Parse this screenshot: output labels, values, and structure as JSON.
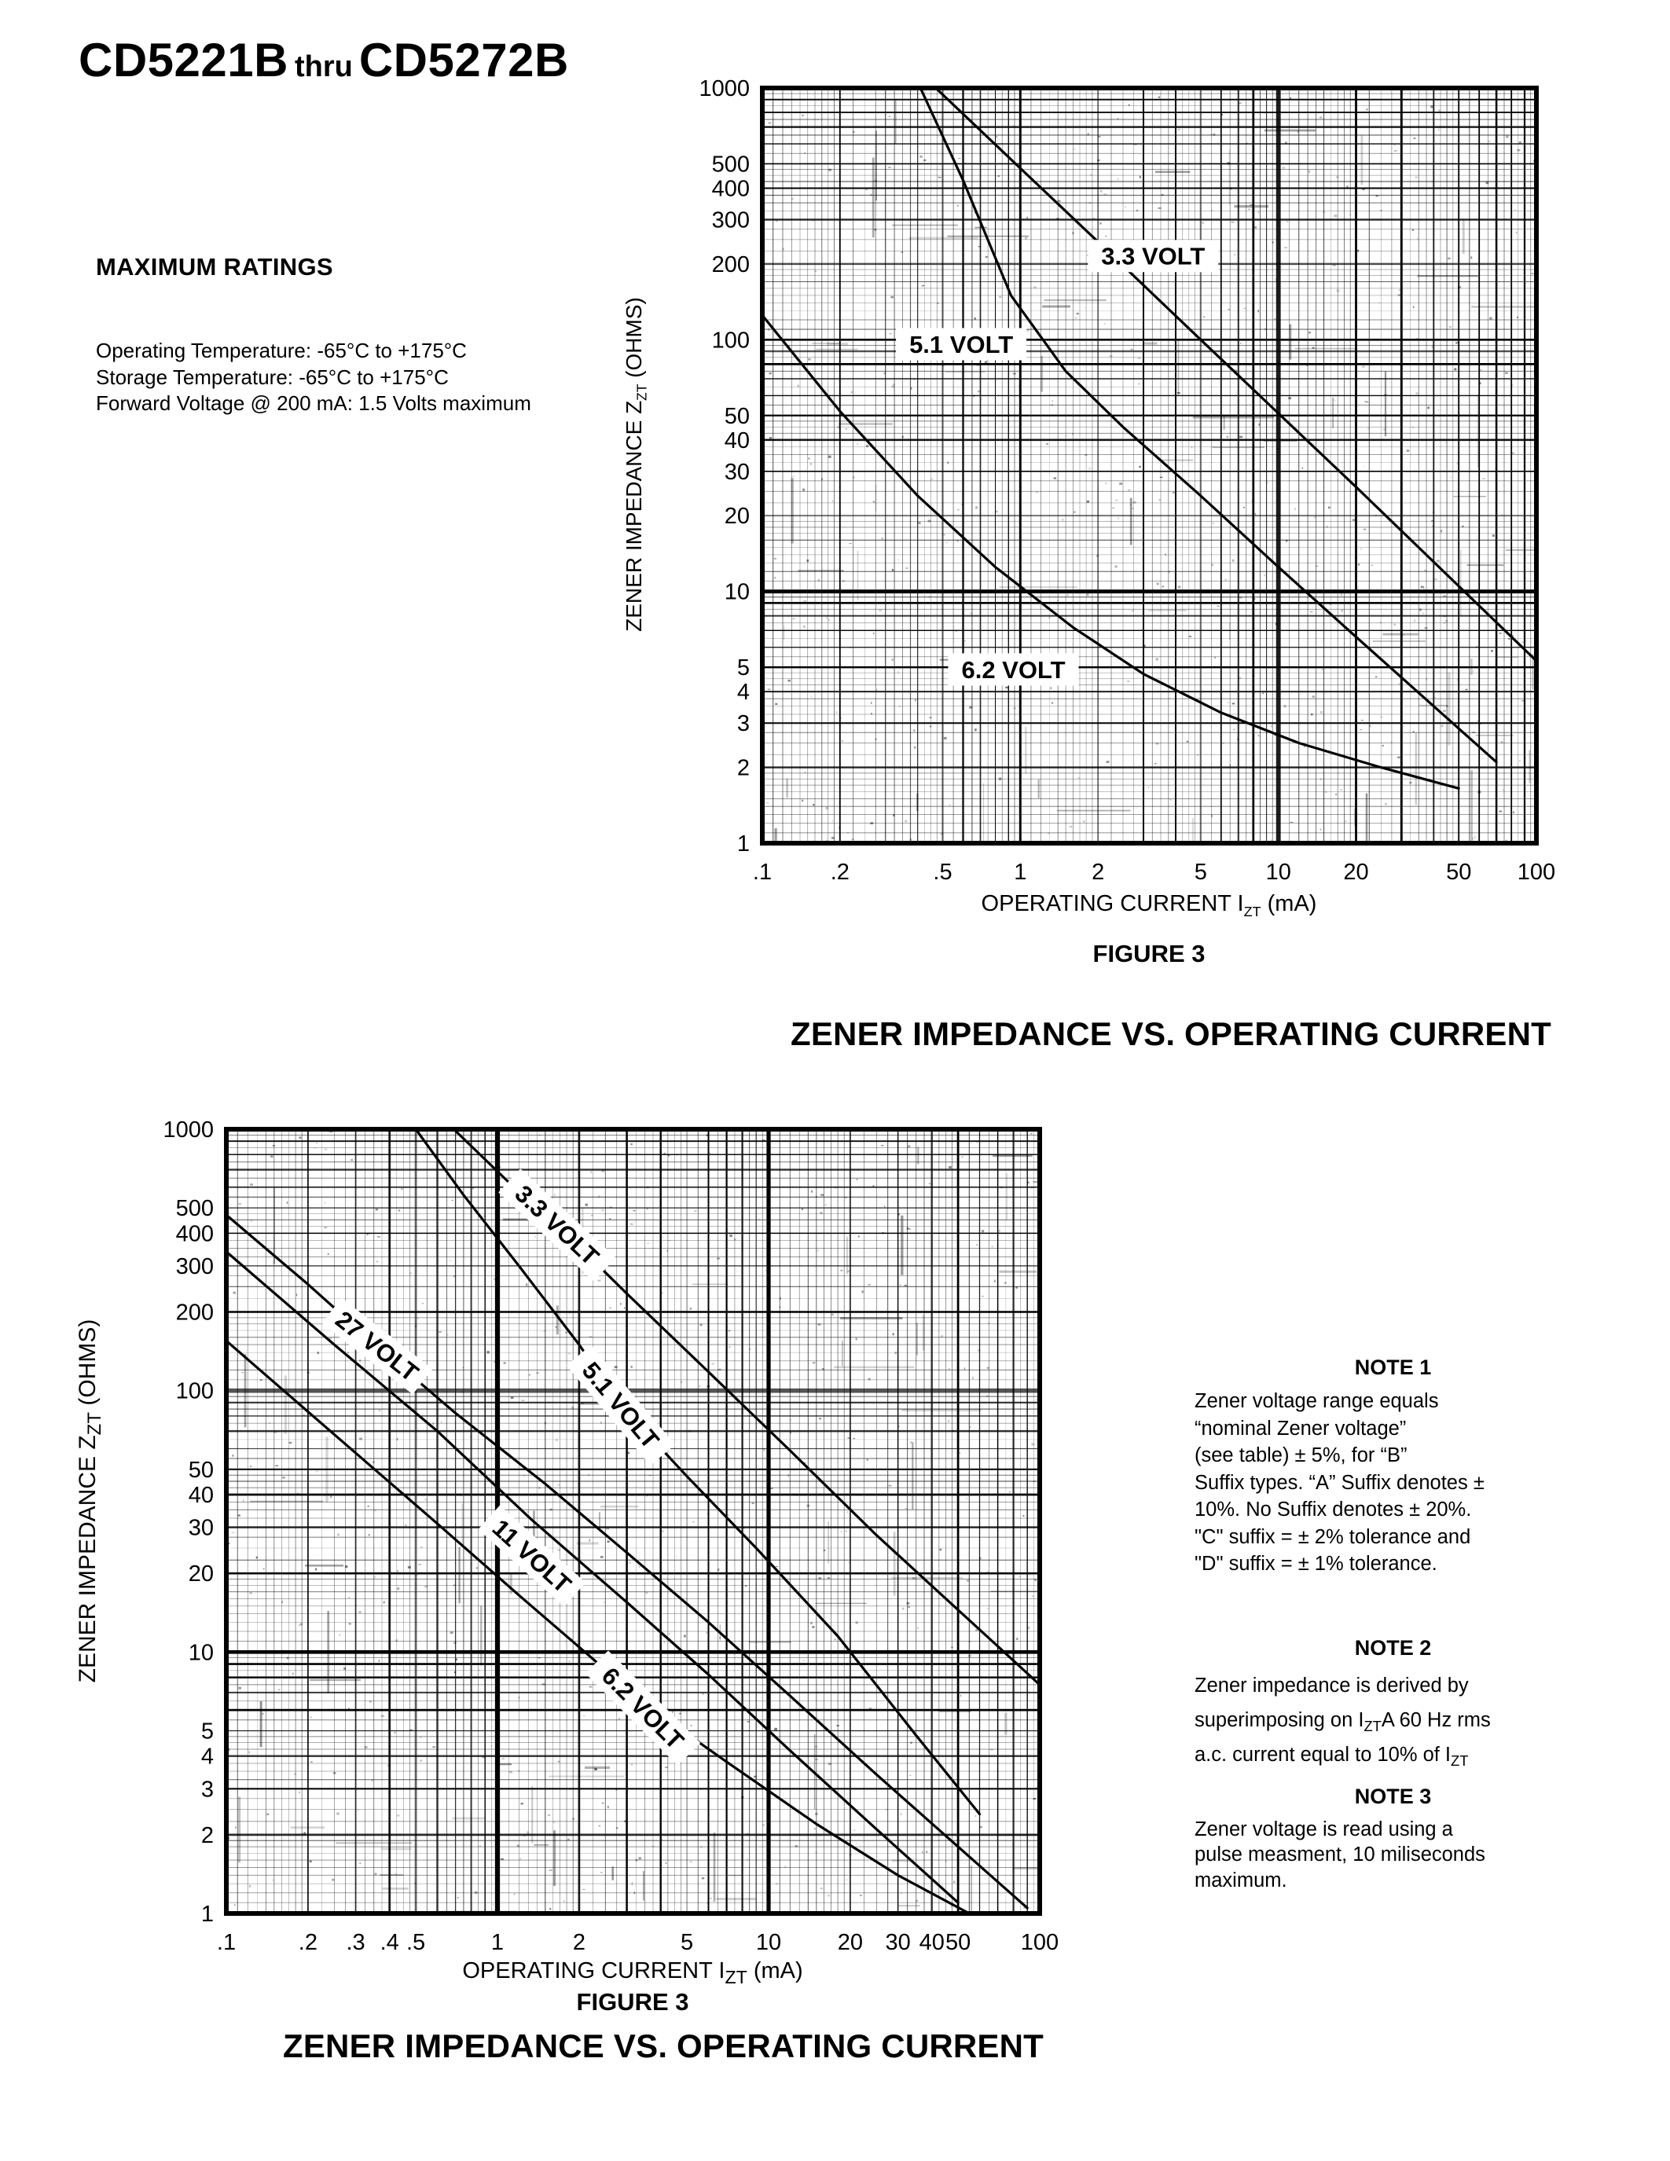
{
  "header": {
    "part1": "CD5221B",
    "thru": "thru",
    "part2": "CD5272B"
  },
  "max_ratings": {
    "heading": "MAXIMUM RATINGS",
    "lines": [
      "Operating Temperature: -65°C to +175°C",
      "Storage Temperature: -65°C to +175°C",
      "Forward Voltage @ 200 mA: 1.5 Volts maximum"
    ]
  },
  "figures": {
    "top_caption": "FIGURE 3",
    "mid_heading": "ZENER IMPEDANCE VS. OPERATING CURRENT",
    "bottom_caption": "FIGURE 3",
    "bottom_heading": "ZENER IMPEDANCE VS. OPERATING CURRENT"
  },
  "notes": [
    {
      "heading": "NOTE 1",
      "lines": [
        "Zener voltage range equals",
        "“nominal Zener voltage”",
        "(see table) ± 5%, for “B”",
        "Suffix types. “A” Suffix denotes ±",
        "10%. No Suffix denotes ± 20%.",
        "\"C\" suffix = ± 2% tolerance and",
        "\"D\" suffix = ± 1% tolerance."
      ]
    },
    {
      "heading": "NOTE 2",
      "lines": [
        "Zener impedance is derived by",
        "superimposing on I{ZT}A 60 Hz rms",
        "a.c. current equal to 10% of I{ZT}"
      ]
    },
    {
      "heading": "NOTE 3",
      "lines": [
        "Zener voltage is read using a",
        "pulse measment, 10 miliseconds",
        "maximum."
      ]
    }
  ],
  "chart_data": [
    {
      "id": "figure3-top",
      "type": "line",
      "xscale": "log",
      "yscale": "log",
      "xlim": [
        0.1,
        100
      ],
      "ylim": [
        1,
        1000
      ],
      "grid": "dense-log-scan",
      "legend_position": "inline-labels",
      "xlabel_rich": "OPERATING CURRENT I{ZT} (mA)",
      "ylabel_rich": "ZENER IMPEDANCE Z{ZT} (OHMS)",
      "x_ticks": [
        {
          "v": 0.1,
          "l": ".1"
        },
        {
          "v": 0.2,
          "l": ".2"
        },
        {
          "v": 0.5,
          "l": ".5"
        },
        {
          "v": 1,
          "l": "1"
        },
        {
          "v": 2,
          "l": "2"
        },
        {
          "v": 5,
          "l": "5"
        },
        {
          "v": 10,
          "l": "10"
        },
        {
          "v": 20,
          "l": "20"
        },
        {
          "v": 50,
          "l": "50"
        },
        {
          "v": 100,
          "l": "100"
        }
      ],
      "y_ticks": [
        {
          "v": 1000,
          "l": "1000"
        },
        {
          "v": 500,
          "l": "500"
        },
        {
          "v": 400,
          "l": "400"
        },
        {
          "v": 300,
          "l": "300"
        },
        {
          "v": 200,
          "l": "200"
        },
        {
          "v": 100,
          "l": "100"
        },
        {
          "v": 50,
          "l": "50"
        },
        {
          "v": 40,
          "l": "40"
        },
        {
          "v": 30,
          "l": "30"
        },
        {
          "v": 20,
          "l": "20"
        },
        {
          "v": 10,
          "l": "10"
        },
        {
          "v": 5,
          "l": "5"
        },
        {
          "v": 4,
          "l": "4"
        },
        {
          "v": 3,
          "l": "3"
        },
        {
          "v": 2,
          "l": "2"
        },
        {
          "v": 1,
          "l": "1"
        }
      ],
      "series": [
        {
          "name": "3.3 VOLT",
          "label_at": {
            "x": 3.27,
            "y": 215,
            "rot": 0
          },
          "points": [
            [
              0.47,
              1000
            ],
            [
              1,
              480
            ],
            [
              2,
              245
            ],
            [
              5,
              100
            ],
            [
              10,
              51
            ],
            [
              20,
              26
            ],
            [
              50,
              10.5
            ],
            [
              100,
              5.3
            ]
          ]
        },
        {
          "name": "5.1 VOLT",
          "label_at": {
            "x": 0.59,
            "y": 96,
            "rot": 0
          },
          "points": [
            [
              0.41,
              1000
            ],
            [
              0.6,
              430
            ],
            [
              0.92,
              150
            ],
            [
              1.5,
              75
            ],
            [
              2.5,
              45
            ],
            [
              5,
              24
            ],
            [
              10,
              12.5
            ],
            [
              20,
              6.6
            ],
            [
              40,
              3.5
            ],
            [
              70,
              2.1
            ]
          ]
        },
        {
          "name": "6.2 VOLT",
          "label_at": {
            "x": 0.94,
            "y": 4.9,
            "rot": 0
          },
          "points": [
            [
              0.1,
              125
            ],
            [
              0.2,
              52
            ],
            [
              0.4,
              24
            ],
            [
              0.8,
              12.5
            ],
            [
              1.6,
              7.2
            ],
            [
              3,
              4.7
            ],
            [
              6,
              3.3
            ],
            [
              12,
              2.5
            ],
            [
              25,
              2.0
            ],
            [
              50,
              1.65
            ]
          ]
        }
      ]
    },
    {
      "id": "figure3-bottom",
      "type": "line",
      "xscale": "log",
      "yscale": "log",
      "xlim": [
        0.1,
        100
      ],
      "ylim": [
        1,
        1000
      ],
      "grid": "dense-log-scan",
      "legend_position": "inline-labels",
      "xlabel_rich": "OPERATING CURRENT I{ZT} (mA)",
      "ylabel_rich": "ZENER IMPEDANCE Z{ZT} (OHMS)",
      "x_ticks": [
        {
          "v": 0.1,
          "l": ".1"
        },
        {
          "v": 0.2,
          "l": ".2"
        },
        {
          "v": 0.3,
          "l": ".3"
        },
        {
          "v": 0.4,
          "l": ".4"
        },
        {
          "v": 0.5,
          "l": ".5"
        },
        {
          "v": 1,
          "l": "1"
        },
        {
          "v": 2,
          "l": "2"
        },
        {
          "v": 5,
          "l": "5"
        },
        {
          "v": 10,
          "l": "10"
        },
        {
          "v": 20,
          "l": "20"
        },
        {
          "v": 30,
          "l": "30"
        },
        {
          "v": 40,
          "l": "40"
        },
        {
          "v": 50,
          "l": "50"
        },
        {
          "v": 100,
          "l": "100"
        }
      ],
      "y_ticks": [
        {
          "v": 1000,
          "l": "1000"
        },
        {
          "v": 500,
          "l": "500"
        },
        {
          "v": 400,
          "l": "400"
        },
        {
          "v": 300,
          "l": "300"
        },
        {
          "v": 200,
          "l": "200"
        },
        {
          "v": 100,
          "l": "100"
        },
        {
          "v": 50,
          "l": "50"
        },
        {
          "v": 40,
          "l": "40"
        },
        {
          "v": 30,
          "l": "30"
        },
        {
          "v": 20,
          "l": "20"
        },
        {
          "v": 10,
          "l": "10"
        },
        {
          "v": 5,
          "l": "5"
        },
        {
          "v": 4,
          "l": "4"
        },
        {
          "v": 3,
          "l": "3"
        },
        {
          "v": 2,
          "l": "2"
        },
        {
          "v": 1,
          "l": "1"
        }
      ],
      "series": [
        {
          "name": "3.3 VOLT",
          "label_at": {
            "x": 1.66,
            "y": 430,
            "rot": 43
          },
          "points": [
            [
              0.69,
              1000
            ],
            [
              1.2,
              575
            ],
            [
              1.66,
              430
            ],
            [
              3,
              235
            ],
            [
              6,
              118
            ],
            [
              12,
              59
            ],
            [
              25,
              28
            ],
            [
              50,
              14.5
            ],
            [
              100,
              7.5
            ]
          ]
        },
        {
          "name": "27 VOLT",
          "label_at": {
            "x": 0.36,
            "y": 148,
            "rot": 38
          },
          "points": [
            [
              0.1,
              470
            ],
            [
              0.2,
              255
            ],
            [
              0.36,
              148
            ],
            [
              0.7,
              82
            ],
            [
              1.5,
              44
            ],
            [
              3,
              24
            ],
            [
              6,
              13
            ],
            [
              12,
              6.8
            ],
            [
              25,
              3.4
            ],
            [
              50,
              1.8
            ],
            [
              90,
              1.05
            ]
          ]
        },
        {
          "name": "5.1 VOLT",
          "label_at": {
            "x": 2.85,
            "y": 88,
            "rot": 50
          },
          "points": [
            [
              0.5,
              1000
            ],
            [
              0.75,
              560
            ],
            [
              1.2,
              300
            ],
            [
              2,
              150
            ],
            [
              2.85,
              88
            ],
            [
              5,
              47
            ],
            [
              9,
              25
            ],
            [
              18,
              11.5
            ],
            [
              35,
              4.8
            ],
            [
              60,
              2.4
            ]
          ]
        },
        {
          "name": "11 VOLT",
          "label_at": {
            "x": 1.34,
            "y": 23.3,
            "rot": 42
          },
          "points": [
            [
              0.1,
              340
            ],
            [
              0.25,
              150
            ],
            [
              0.6,
              70
            ],
            [
              1.34,
              32
            ],
            [
              3,
              15.5
            ],
            [
              6,
              8.2
            ],
            [
              12,
              4.2
            ],
            [
              25,
              2.1
            ],
            [
              50,
              1.1
            ]
          ]
        },
        {
          "name": "6.2 VOLT",
          "label_at": {
            "x": 3.44,
            "y": 6.1,
            "rot": 45
          },
          "points": [
            [
              0.1,
              155
            ],
            [
              0.25,
              68
            ],
            [
              0.6,
              31
            ],
            [
              1.2,
              16.5
            ],
            [
              2.2,
              9.6
            ],
            [
              3.44,
              6.4
            ],
            [
              7,
              3.8
            ],
            [
              15,
              2.2
            ],
            [
              30,
              1.4
            ],
            [
              55,
              1.0
            ]
          ]
        }
      ]
    }
  ]
}
